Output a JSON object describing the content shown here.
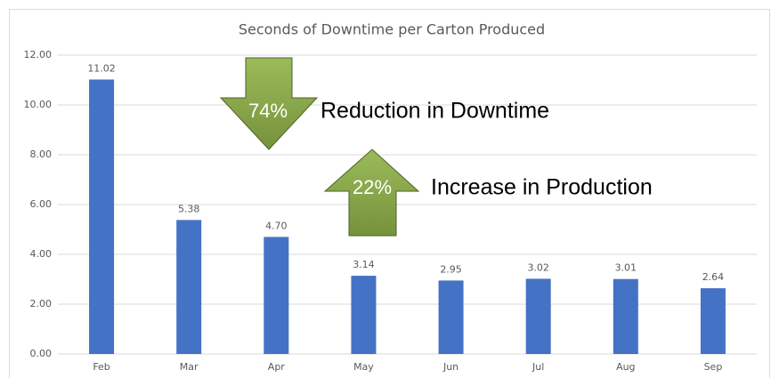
{
  "chart_data": {
    "type": "bar",
    "title": "Seconds of Downtime per Carton Produced",
    "categories": [
      "Feb",
      "Mar",
      "Apr",
      "May",
      "Jun",
      "Jul",
      "Aug",
      "Sep"
    ],
    "values": [
      11.02,
      5.38,
      4.7,
      3.14,
      2.95,
      3.02,
      3.01,
      2.64
    ],
    "value_labels": [
      "11.02",
      "5.38",
      "4.70",
      "3.14",
      "2.95",
      "3.02",
      "3.01",
      "2.64"
    ],
    "color": "#4472c4",
    "ylim": [
      0,
      12
    ],
    "yticks": [
      {
        "value": 0,
        "label": "0.00"
      },
      {
        "value": 2,
        "label": "2.00"
      },
      {
        "value": 4,
        "label": "4.00"
      },
      {
        "value": 6,
        "label": "6.00"
      },
      {
        "value": 8,
        "label": "8.00"
      },
      {
        "value": 10,
        "label": "10.00"
      },
      {
        "value": 12,
        "label": "12.00"
      }
    ],
    "grid": true,
    "annotations": [
      {
        "arrow": "down",
        "value_text": "74%",
        "text": "Reduction in Downtime"
      },
      {
        "arrow": "up",
        "value_text": "22%",
        "text": "Increase in Production"
      }
    ]
  }
}
